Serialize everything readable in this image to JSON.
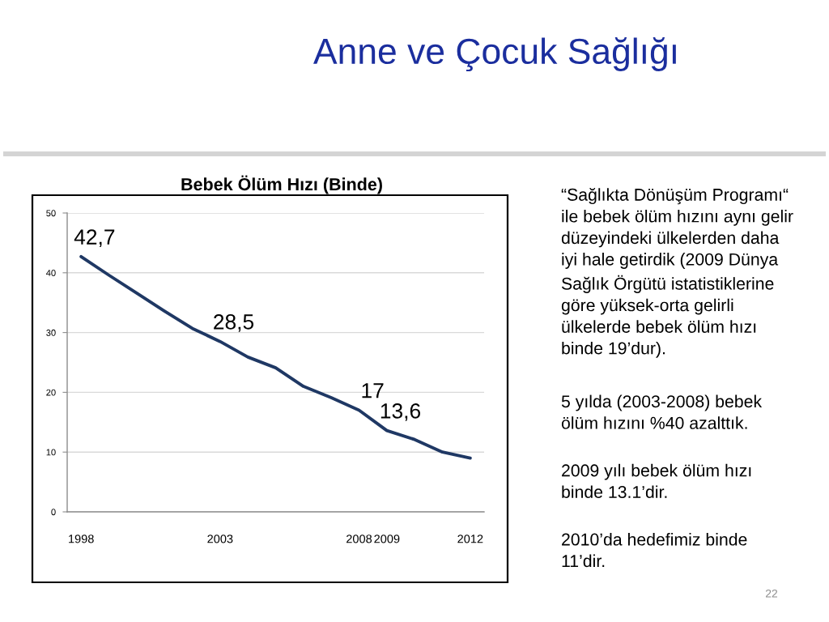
{
  "chart_data": {
    "type": "line",
    "title": "Anne ve Çocuk Sağlığı",
    "subtitle": "Bebek Ölüm Hızı (Binde)",
    "categories": [
      "1998",
      null,
      null,
      null,
      null,
      "2003",
      null,
      null,
      null,
      null,
      "2008",
      "2009",
      null,
      null,
      "2012"
    ],
    "series": [
      {
        "color": "#1f3864",
        "values": [
          42.7,
          39.6,
          36.6,
          33.6,
          30.7,
          28.5,
          25.9,
          24.1,
          21.0,
          19.1,
          17.0,
          13.6,
          12.1,
          10.0,
          9.0
        ],
        "value_labels": [
          "42,7",
          null,
          null,
          null,
          null,
          "28,5",
          null,
          null,
          null,
          null,
          "17",
          "13,6",
          null,
          null,
          null
        ]
      }
    ],
    "ylim": [
      0,
      50
    ],
    "yticks": [
      0,
      10,
      20,
      30,
      40,
      50
    ],
    "grid": "y",
    "annotations": [
      "“Sağlıkta Dönüşüm Programı“\nile bebek ölüm hızını aynı gelir\ndüzeyindeki ülkelerden daha\niyi hale getirdik (2009 Dünya\nSağlık Örgütü istatistiklerine\ngöre yüksek-orta gelirli\nülkelerde bebek ölüm hızı\nbinde 19’dur).",
      "5 yılda (2003-2008) bebek\nölüm hızını %40 azalttık.",
      "2009 yılı bebek ölüm hızı\nbinde 13.1’dir.",
      "2010’da hedefimiz binde\n11’dir.",
      "22"
    ]
  }
}
